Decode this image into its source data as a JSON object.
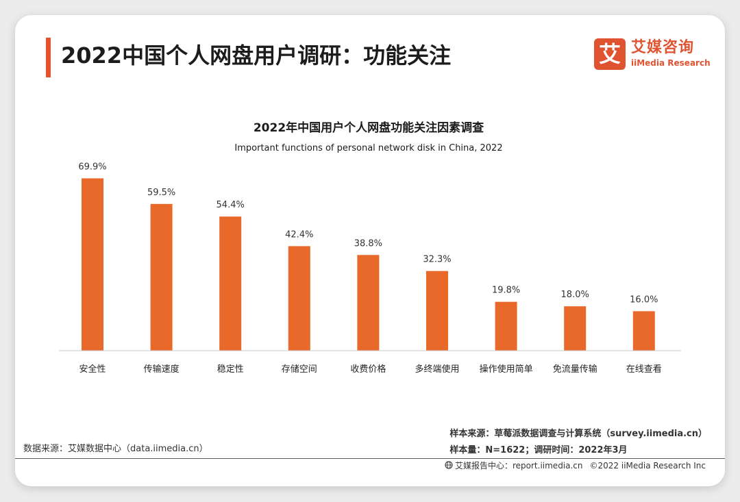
{
  "header": {
    "title": "2022中国个人网盘用户调研：功能关注",
    "logo_mark": "艾",
    "logo_cn": "艾媒咨询",
    "logo_en": "iiMedia Research"
  },
  "chart_data": {
    "type": "bar",
    "title": "2022年中国用户个人网盘功能关注因素调查",
    "subtitle": "Important functions of personal network disk in China, 2022",
    "categories": [
      "安全性",
      "传输速度",
      "稳定性",
      "存储空间",
      "收费价格",
      "多终端使用",
      "操作使用简单",
      "免流量传输",
      "在线查看"
    ],
    "values": [
      69.9,
      59.5,
      54.4,
      42.4,
      38.8,
      32.3,
      19.8,
      18.0,
      16.0
    ],
    "value_labels": [
      "69.9%",
      "59.5%",
      "54.4%",
      "42.4%",
      "38.8%",
      "32.3%",
      "19.8%",
      "18.0%",
      "16.0%"
    ],
    "unit": "%",
    "ylim": [
      0,
      70
    ],
    "color": "#e8692a",
    "xlabel": "",
    "ylabel": ""
  },
  "sources": {
    "data_source": "数据来源：艾媒数据中心（data.iimedia.cn）",
    "sample_source": "样本来源：草莓派数据调查与计算系统（survey.iimedia.cn）",
    "sample_size": "样本量：N=1622；调研时间：2022年3月"
  },
  "footer": {
    "report_center": "艾媒报告中心：report.iimedia.cn",
    "copyright": "©2022  iiMedia Research Inc"
  }
}
